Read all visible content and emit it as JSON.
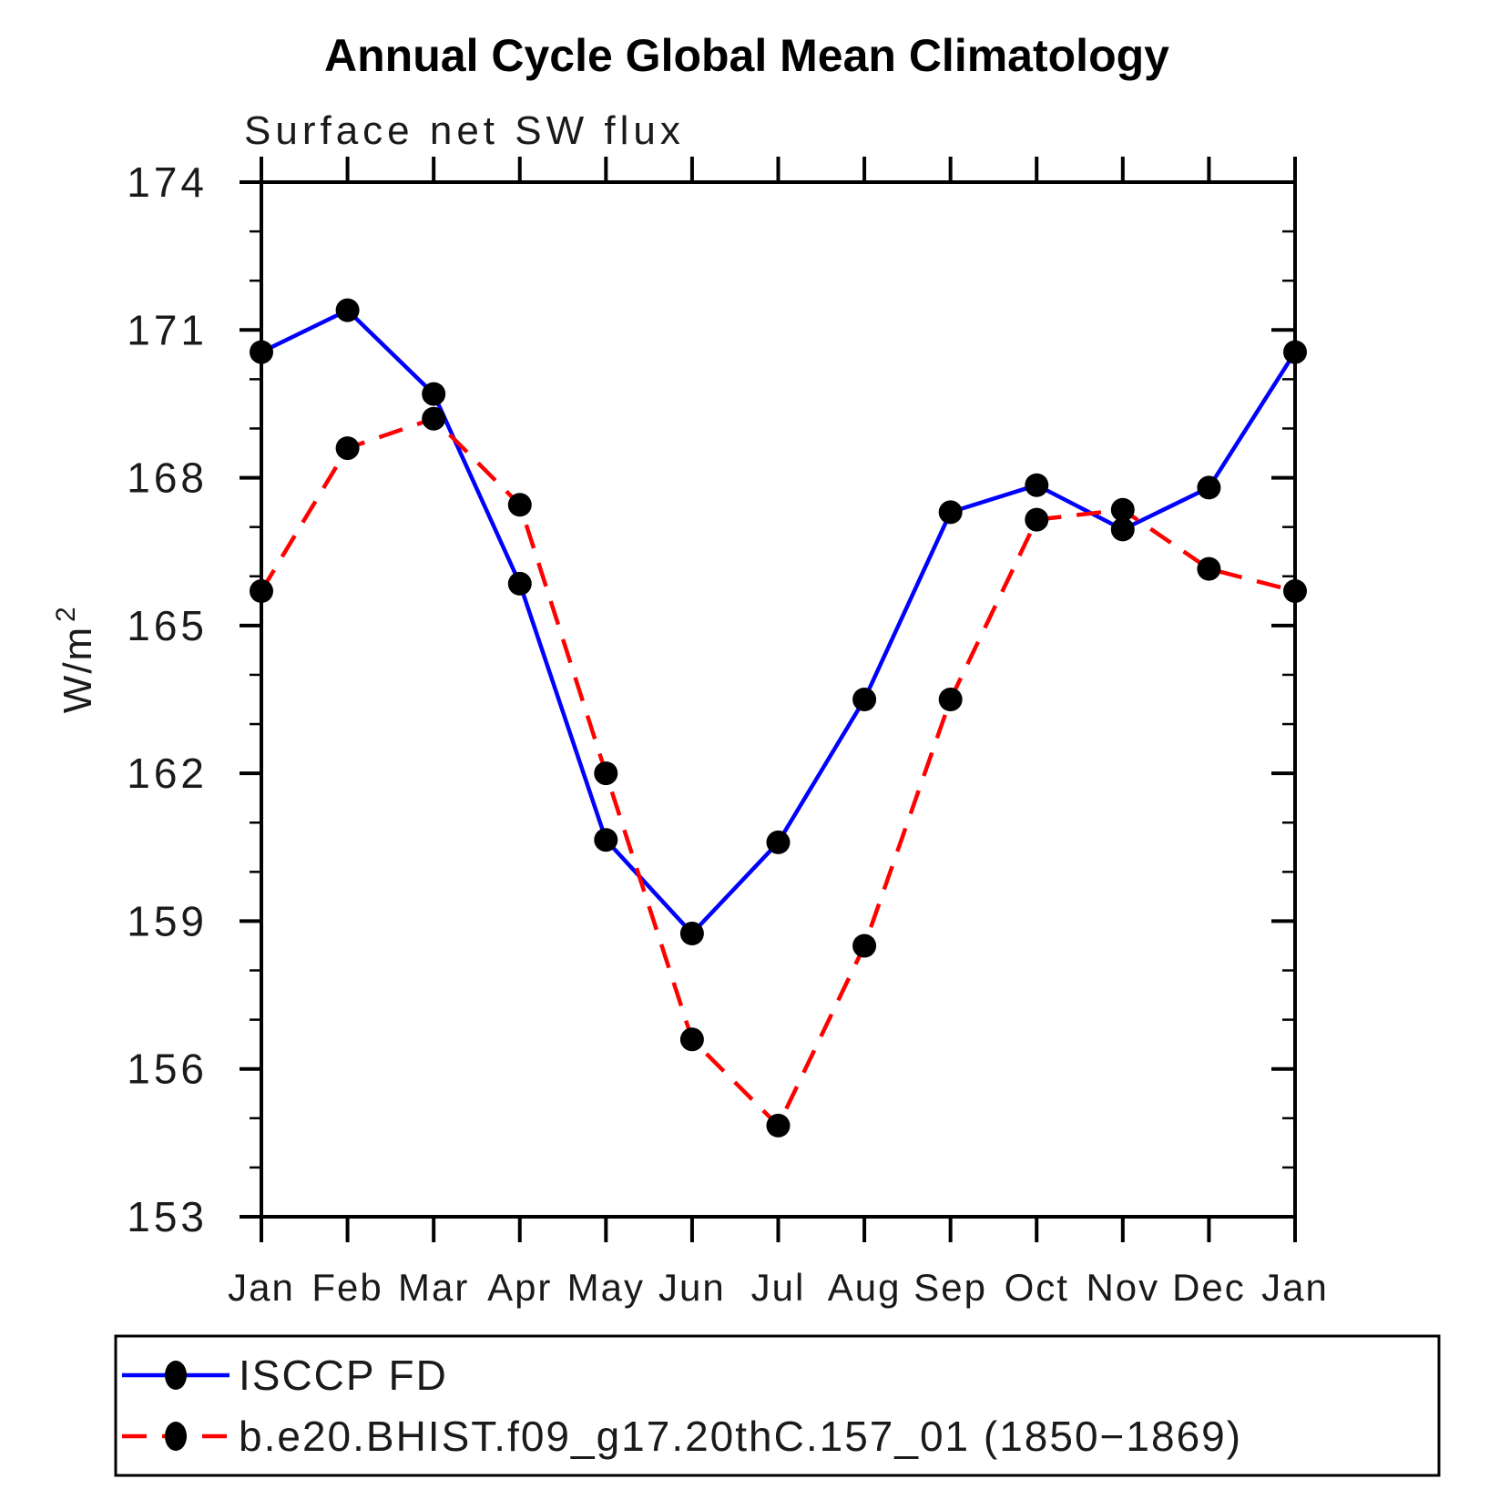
{
  "title": "Annual Cycle Global Mean Climatology",
  "subtitle": "Surface net SW flux",
  "y_axis": {
    "label_base": "W/m",
    "label_exponent": "2",
    "major_tick_labels": [
      "174",
      "171",
      "168",
      "165",
      "162",
      "159",
      "156",
      "153"
    ]
  },
  "x_axis": {
    "month_labels": [
      "Jan",
      "Feb",
      "Mar",
      "Apr",
      "May",
      "Jun",
      "Jul",
      "Aug",
      "Sep",
      "Oct",
      "Nov",
      "Dec",
      "Jan"
    ]
  },
  "legend": {
    "entries": [
      {
        "label": "ISCCP FD",
        "color": "#0000ff",
        "style": "solid"
      },
      {
        "label": "b.e20.BHIST.f09_g17.20thC.157_01 (1850−1869)",
        "color": "#ff0000",
        "style": "dashed"
      }
    ]
  },
  "chart_data": {
    "type": "line",
    "title": "Annual Cycle Global Mean Climatology",
    "subtitle": "Surface net SW flux",
    "xlabel": "",
    "ylabel": "W/m2",
    "ylim": [
      153,
      174
    ],
    "y_major_step": 3,
    "y_minor_step": 1,
    "grid": false,
    "legend_position": "bottom",
    "marker": "filled-black-circle",
    "x_categories": [
      "Jan",
      "Feb",
      "Mar",
      "Apr",
      "May",
      "Jun",
      "Jul",
      "Aug",
      "Sep",
      "Oct",
      "Nov",
      "Dec",
      "Jan"
    ],
    "series": [
      {
        "name": "ISCCP FD",
        "color": "#0000ff",
        "line_style": "solid",
        "values": [
          170.55,
          171.4,
          169.7,
          165.85,
          160.65,
          158.75,
          160.6,
          163.5,
          167.3,
          167.85,
          166.95,
          167.8,
          170.55
        ]
      },
      {
        "name": "b.e20.BHIST.f09_g17.20thC.157_01 (1850−1869)",
        "color": "#ff0000",
        "line_style": "dashed",
        "values": [
          165.7,
          168.6,
          169.2,
          167.45,
          162.0,
          156.6,
          154.85,
          158.5,
          163.5,
          167.15,
          167.35,
          166.15,
          165.7
        ]
      }
    ]
  }
}
